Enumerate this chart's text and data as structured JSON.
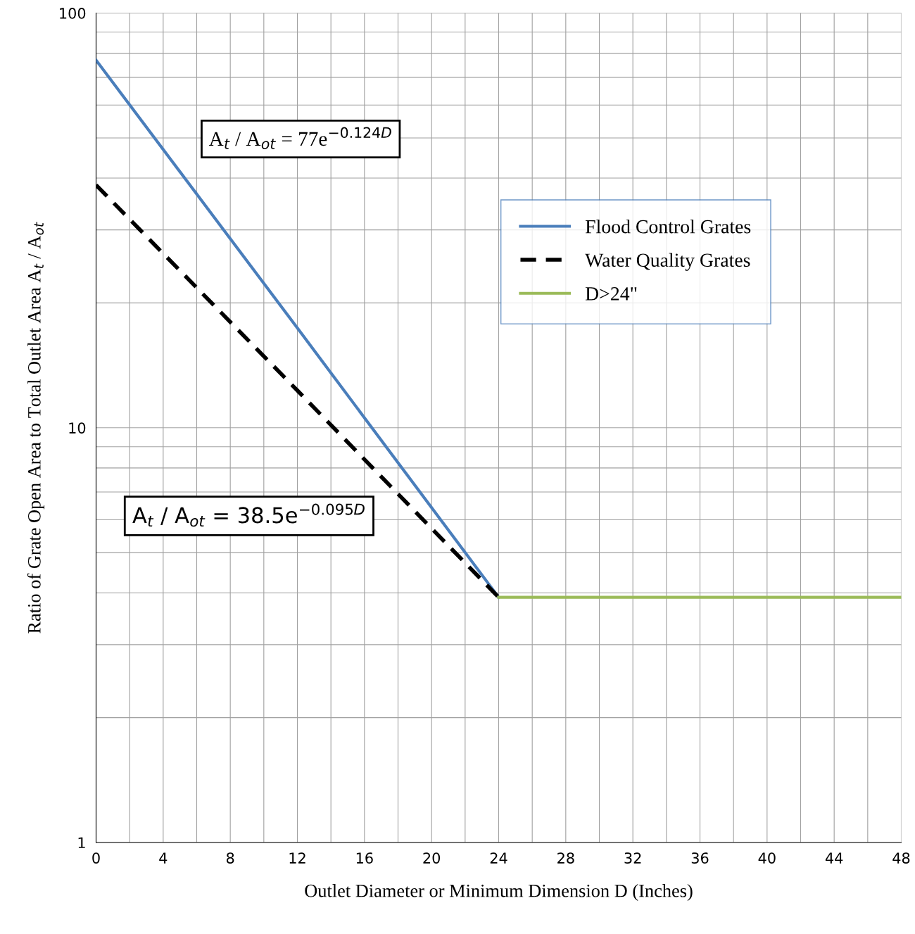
{
  "chart_data": {
    "type": "line",
    "xlabel": "Outlet Diameter or Minimum Dimension D (Inches)",
    "ylabel": "Ratio of Grate Open Area to Total Outlet Area A$_{t}$ / A$_{ot}$",
    "series": [
      {
        "name": "Flood Control Grates",
        "color": "#4a7ebb",
        "x": [
          0,
          12,
          24
        ],
        "values": [
          77,
          17.4,
          3.9
        ],
        "line_style": "solid"
      },
      {
        "name": "Water Quality Grates",
        "color": "#000000",
        "x": [
          0,
          12,
          24
        ],
        "values": [
          38.5,
          12.3,
          3.9
        ],
        "line_style": "dashed"
      },
      {
        "name": "D>24\"",
        "color": "#9bbb59",
        "x": [
          24,
          48
        ],
        "values": [
          3.9,
          3.9
        ],
        "line_style": "solid"
      }
    ],
    "annotations": [
      "A$_{t}$ / A$_{ot}$ = 77e$^{−0.124D}$",
      "A$_{t}$ / A$_{ot}$ = 38.5e$^{−0.095D}$"
    ],
    "log": "y",
    "xlim": [
      0,
      48
    ],
    "ylim": [
      1,
      100
    ],
    "xticks": [
      0,
      4,
      8,
      12,
      16,
      20,
      24,
      28,
      32,
      36,
      40,
      44,
      48
    ],
    "yticks": [
      1,
      10,
      100
    ],
    "grid": true,
    "legend": "right"
  }
}
